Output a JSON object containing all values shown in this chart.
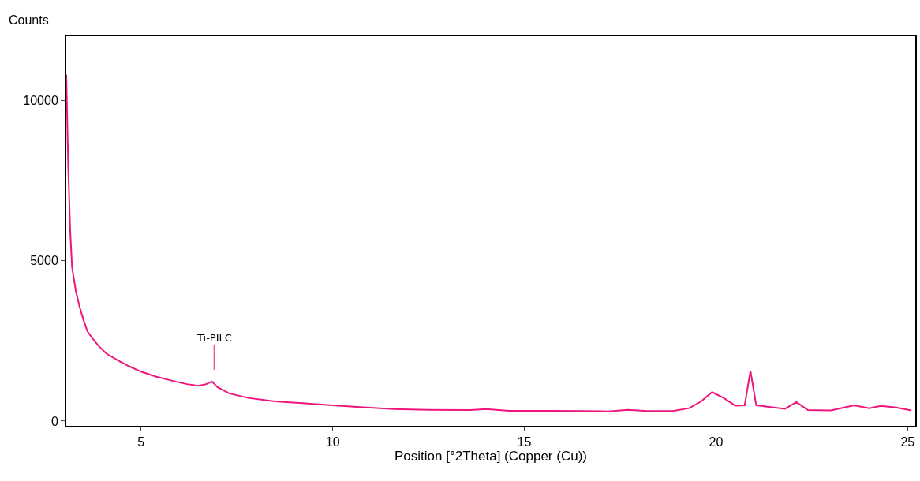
{
  "chart_data": {
    "type": "line",
    "xlabel": "Position [°2Theta] (Copper (Cu))",
    "ylabel": "Counts",
    "x": [
      3.05,
      3.1,
      3.15,
      3.2,
      3.3,
      3.4,
      3.5,
      3.6,
      3.75,
      3.9,
      4.1,
      4.4,
      4.7,
      5.0,
      5.4,
      5.9,
      6.2,
      6.5,
      6.7,
      6.85,
      7.0,
      7.3,
      7.8,
      8.5,
      9.2,
      10.0,
      10.8,
      11.6,
      12.5,
      13.6,
      14.0,
      14.6,
      15.7,
      16.5,
      17.2,
      17.7,
      18.2,
      18.9,
      19.3,
      19.6,
      19.9,
      20.2,
      20.5,
      20.75,
      20.9,
      21.05,
      21.3,
      21.8,
      22.1,
      22.4,
      23.0,
      23.6,
      24.0,
      24.3,
      24.7,
      25.1
    ],
    "series": [
      {
        "color": "#f0157a",
        "values": [
          10800,
          8000,
          6000,
          4800,
          4050,
          3550,
          3150,
          2800,
          2550,
          2330,
          2100,
          1890,
          1700,
          1540,
          1380,
          1230,
          1150,
          1100,
          1150,
          1230,
          1050,
          860,
          720,
          610,
          560,
          490,
          430,
          370,
          350,
          340,
          370,
          320,
          320,
          310,
          300,
          350,
          310,
          320,
          400,
          600,
          900,
          720,
          480,
          490,
          1570,
          490,
          450,
          380,
          590,
          340,
          330,
          490,
          400,
          470,
          420,
          330
        ]
      }
    ],
    "xlim": [
      3.05,
      25.2
    ],
    "ylim": [
      -150,
      12000
    ],
    "xticks": [
      5,
      10,
      15,
      20,
      25
    ],
    "yticks": [
      0,
      5000,
      10000
    ],
    "annotations": [
      "Ti-PILC"
    ],
    "grid": false,
    "line_style": "solid"
  }
}
